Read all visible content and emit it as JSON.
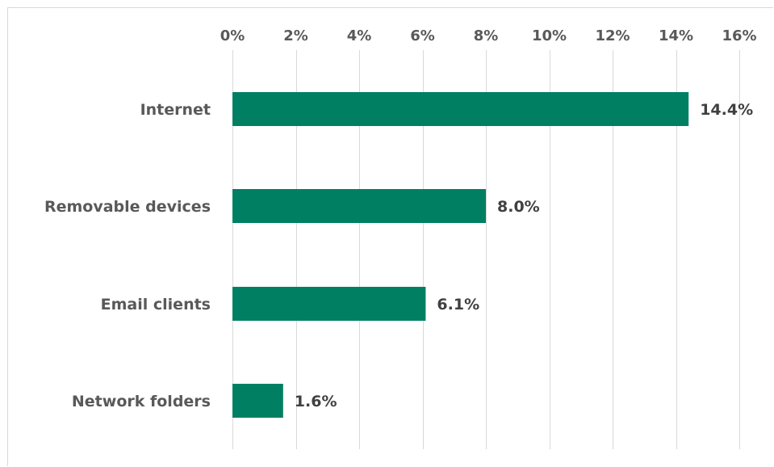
{
  "chart_data": {
    "type": "bar",
    "orientation": "horizontal",
    "categories": [
      "Internet",
      "Removable devices",
      "Email clients",
      "Network folders"
    ],
    "values": [
      14.4,
      8.0,
      6.1,
      1.6
    ],
    "data_labels": [
      "14.4%",
      "8.0%",
      "6.1%",
      "1.6%"
    ],
    "xlim": [
      0,
      16
    ],
    "x_ticks": [
      0,
      2,
      4,
      6,
      8,
      10,
      12,
      14,
      16
    ],
    "x_tick_labels": [
      "0%",
      "2%",
      "4%",
      "6%",
      "8%",
      "10%",
      "12%",
      "14%",
      "16%"
    ],
    "x_axis_position": "top",
    "grid": true,
    "legend": "none",
    "title": "",
    "xlabel": "",
    "ylabel": "",
    "bar_color": "#007f63",
    "grid_color": "#d9d9d9",
    "text_color": "#595959"
  }
}
